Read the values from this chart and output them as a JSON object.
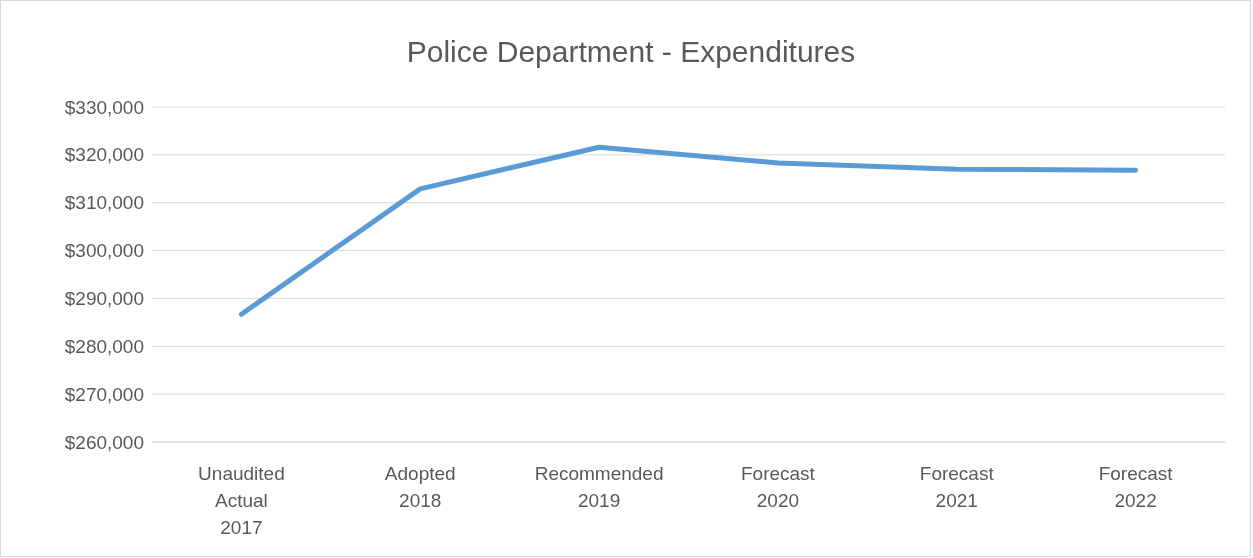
{
  "chart_data": {
    "type": "line",
    "title": "Police Department - Expenditures",
    "categories": [
      "Unaudited Actual 2017",
      "Adopted 2018",
      "Recommended 2019",
      "Forecast 2020",
      "Forecast 2021",
      "Forecast 2022"
    ],
    "series": [
      {
        "color": "#5b9bd5",
        "values": [
          286700,
          312900,
          321600,
          318300,
          317000,
          316800
        ]
      }
    ],
    "ylim": [
      260000,
      330000
    ],
    "yticks": [
      {
        "value": 260000,
        "label": "$260,000"
      },
      {
        "value": 270000,
        "label": "$270,000"
      },
      {
        "value": 280000,
        "label": "$280,000"
      },
      {
        "value": 290000,
        "label": "$290,000"
      },
      {
        "value": 300000,
        "label": "$300,000"
      },
      {
        "value": 310000,
        "label": "$310,000"
      },
      {
        "value": 320000,
        "label": "$320,000"
      },
      {
        "value": 330000,
        "label": "$330,000"
      }
    ],
    "grid": "y",
    "marker": "none",
    "line_style": "solid"
  }
}
